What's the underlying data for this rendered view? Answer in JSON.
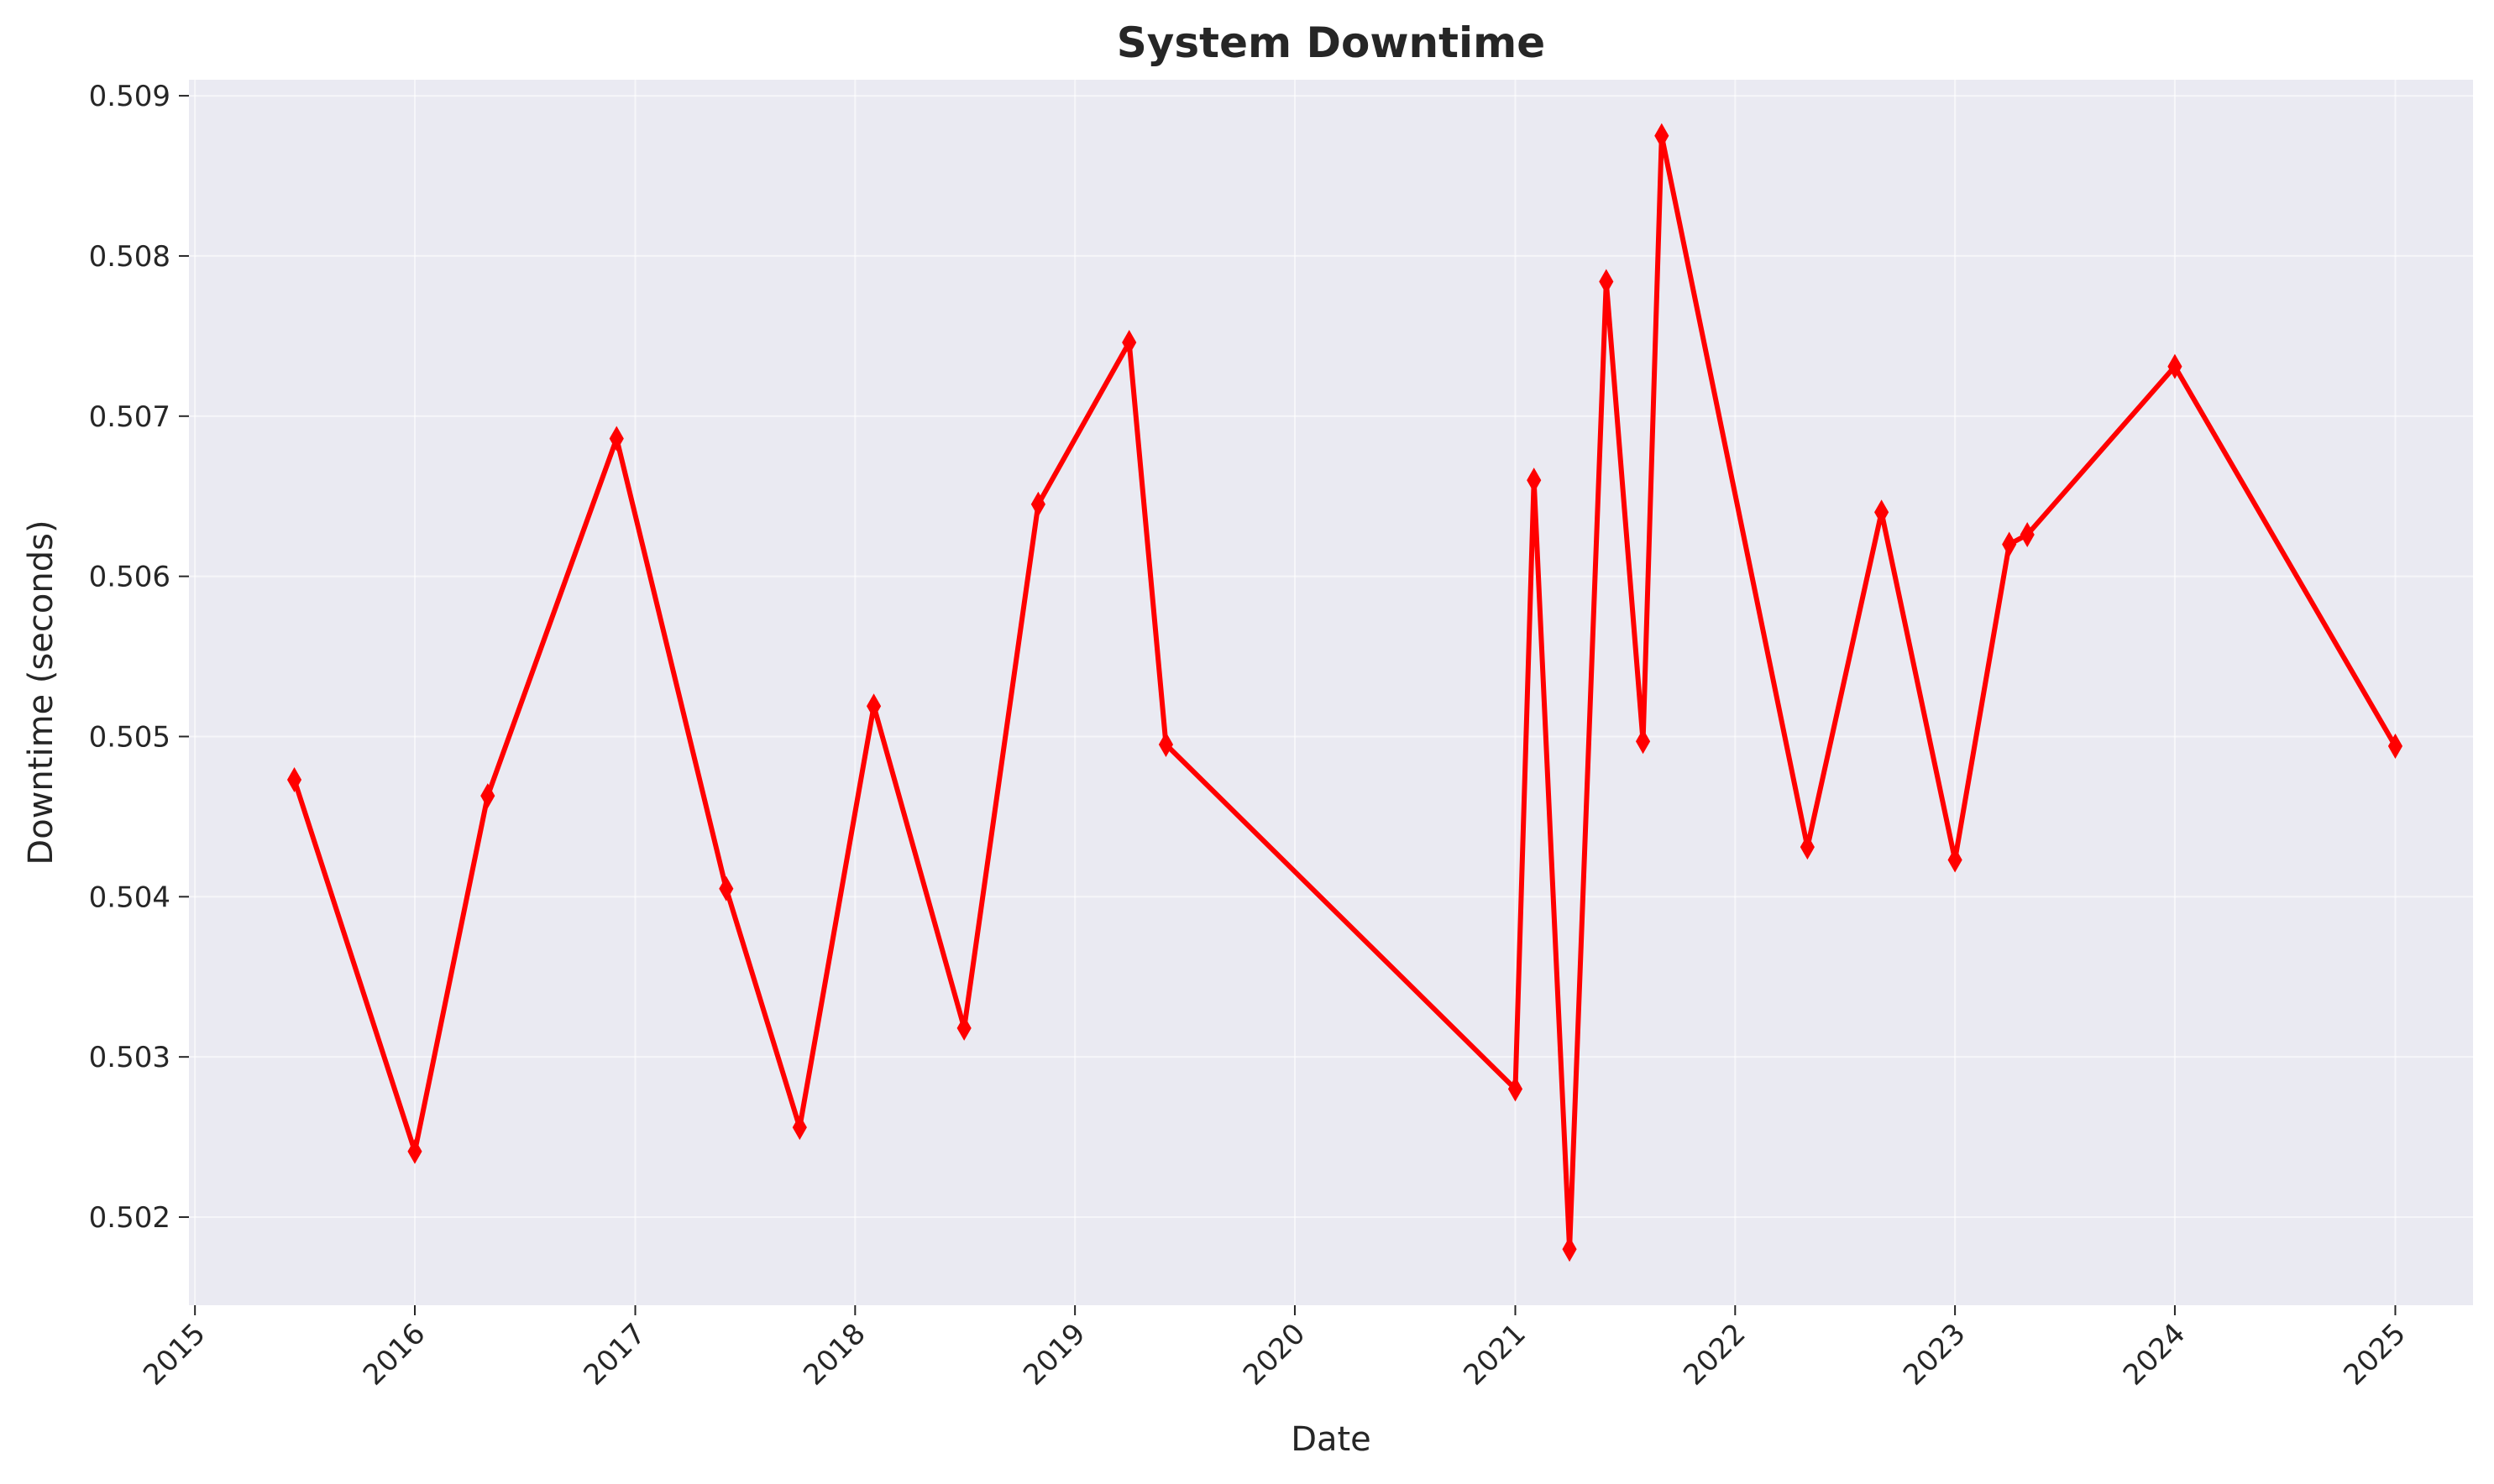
{
  "chart_data": {
    "type": "line",
    "title": "System Downtime",
    "xlabel": "Date",
    "ylabel": "Downtime (seconds)",
    "x_ticks": [
      "2015",
      "2016",
      "2017",
      "2018",
      "2019",
      "2020",
      "2021",
      "2022",
      "2023",
      "2024",
      "2025"
    ],
    "y_ticks": [
      "0.502",
      "0.503",
      "0.504",
      "0.505",
      "0.506",
      "0.507",
      "0.508",
      "0.509"
    ],
    "xlim": [
      "2014-12-22",
      "2025-05-10"
    ],
    "ylim": [
      0.50145,
      0.5091
    ],
    "grid": true,
    "colors": {
      "line": "#ff0000",
      "plot_bg": "#eaeaf2",
      "grid": "#ffffff"
    },
    "marker": "thin-diamond",
    "series": [
      {
        "points": [
          {
            "x": "2015-06-15",
            "y": 0.50473
          },
          {
            "x": "2016-01-01",
            "y": 0.50241
          },
          {
            "x": "2016-05-01",
            "y": 0.50463
          },
          {
            "x": "2016-12-01",
            "y": 0.50686
          },
          {
            "x": "2017-06-01",
            "y": 0.50405
          },
          {
            "x": "2017-10-01",
            "y": 0.50256
          },
          {
            "x": "2018-02-01",
            "y": 0.50519
          },
          {
            "x": "2018-07-01",
            "y": 0.50318
          },
          {
            "x": "2018-11-01",
            "y": 0.50645
          },
          {
            "x": "2019-04-01",
            "y": 0.50746
          },
          {
            "x": "2019-06-01",
            "y": 0.50495
          },
          {
            "x": "2021-01-01",
            "y": 0.5028
          },
          {
            "x": "2021-02-01",
            "y": 0.5066
          },
          {
            "x": "2021-04-01",
            "y": 0.5018
          },
          {
            "x": "2021-06-01",
            "y": 0.50784
          },
          {
            "x": "2021-08-01",
            "y": 0.50497
          },
          {
            "x": "2021-09-01",
            "y": 0.50875
          },
          {
            "x": "2022-05-01",
            "y": 0.50431
          },
          {
            "x": "2022-09-01",
            "y": 0.5064
          },
          {
            "x": "2023-01-01",
            "y": 0.50423
          },
          {
            "x": "2023-04-01",
            "y": 0.5062
          },
          {
            "x": "2023-05-01",
            "y": 0.50626
          },
          {
            "x": "2024-01-01",
            "y": 0.50731
          },
          {
            "x": "2025-01-01",
            "y": 0.50494
          }
        ]
      }
    ]
  }
}
